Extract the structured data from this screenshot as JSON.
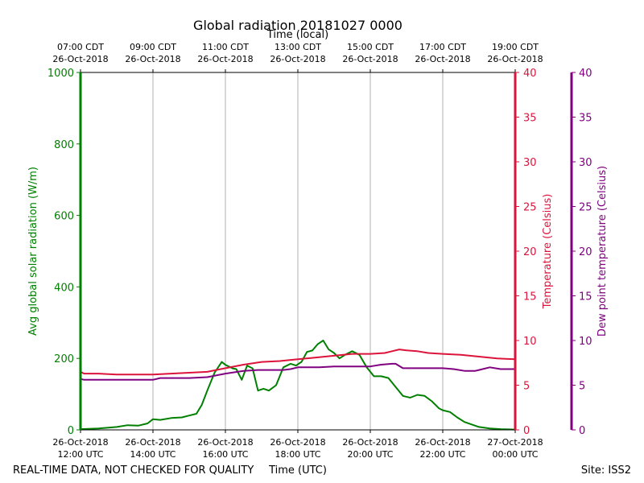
{
  "chart_data": {
    "type": "line",
    "title": "Global radiation 20181027 0000",
    "top_axis_label": "Time (local)",
    "xlabel": "Time (UTC)",
    "footer_left": "REAL-TIME DATA, NOT CHECKED FOR QUALITY",
    "footer_right": "Site: ISS2",
    "x_range_utc_hours": [
      12,
      24
    ],
    "x_ticks": [
      {
        "utc": 12,
        "bottom": [
          "26-Oct-2018",
          "12:00 UTC"
        ],
        "top": [
          "07:00 CDT",
          "26-Oct-2018"
        ]
      },
      {
        "utc": 14,
        "bottom": [
          "26-Oct-2018",
          "14:00 UTC"
        ],
        "top": [
          "09:00 CDT",
          "26-Oct-2018"
        ]
      },
      {
        "utc": 16,
        "bottom": [
          "26-Oct-2018",
          "16:00 UTC"
        ],
        "top": [
          "11:00 CDT",
          "26-Oct-2018"
        ]
      },
      {
        "utc": 18,
        "bottom": [
          "26-Oct-2018",
          "18:00 UTC"
        ],
        "top": [
          "13:00 CDT",
          "26-Oct-2018"
        ]
      },
      {
        "utc": 20,
        "bottom": [
          "26-Oct-2018",
          "20:00 UTC"
        ],
        "top": [
          "15:00 CDT",
          "26-Oct-2018"
        ]
      },
      {
        "utc": 22,
        "bottom": [
          "26-Oct-2018",
          "22:00 UTC"
        ],
        "top": [
          "17:00 CDT",
          "26-Oct-2018"
        ]
      },
      {
        "utc": 24,
        "bottom": [
          "27-Oct-2018",
          "00:00 UTC"
        ],
        "top": [
          "19:00 CDT",
          "26-Oct-2018"
        ]
      }
    ],
    "grid": "vertical",
    "axes": {
      "radiation": {
        "label": "Avg global solar radiation (W/m)",
        "ylim": [
          0,
          1000
        ],
        "ticks": [
          0,
          200,
          400,
          600,
          800,
          1000
        ],
        "color": "#008000",
        "side": "left"
      },
      "temperature": {
        "label": "Temperature (Celsius)",
        "ylim": [
          0,
          40
        ],
        "ticks": [
          0,
          5,
          10,
          15,
          20,
          25,
          30,
          35,
          40
        ],
        "color": "#dc143c",
        "side": "right"
      },
      "dewpoint": {
        "label": "Dew point temperature (Celsius)",
        "ylim": [
          0,
          40
        ],
        "ticks": [
          0,
          5,
          10,
          15,
          20,
          25,
          30,
          35,
          40
        ],
        "color": "#800080",
        "side": "right-outer"
      }
    },
    "series": [
      {
        "axis": "radiation",
        "color": "#008000",
        "x": [
          12.0,
          12.5,
          13.0,
          13.3,
          13.6,
          13.85,
          14.0,
          14.2,
          14.5,
          14.8,
          15.0,
          15.2,
          15.35,
          15.5,
          15.7,
          15.9,
          16.0,
          16.2,
          16.3,
          16.45,
          16.6,
          16.75,
          16.9,
          17.05,
          17.2,
          17.4,
          17.6,
          17.8,
          17.95,
          18.1,
          18.25,
          18.4,
          18.55,
          18.7,
          18.85,
          19.0,
          19.15,
          19.3,
          19.5,
          19.7,
          19.9,
          20.1,
          20.3,
          20.5,
          20.7,
          20.9,
          21.1,
          21.3,
          21.5,
          21.7,
          21.9,
          22.0,
          22.2,
          22.4,
          22.6,
          22.8,
          23.0,
          23.3,
          23.6,
          24.0
        ],
        "values": [
          2,
          4,
          8,
          13,
          12,
          18,
          30,
          28,
          33,
          35,
          40,
          45,
          70,
          110,
          160,
          190,
          182,
          172,
          170,
          140,
          180,
          172,
          110,
          115,
          110,
          125,
          175,
          185,
          180,
          190,
          218,
          222,
          240,
          250,
          225,
          215,
          200,
          210,
          220,
          210,
          175,
          150,
          150,
          145,
          120,
          95,
          90,
          98,
          95,
          80,
          60,
          55,
          50,
          35,
          22,
          15,
          8,
          4,
          2,
          1
        ]
      },
      {
        "axis": "temperature",
        "color": "#dc143c",
        "x": [
          12.0,
          12.1,
          12.5,
          13.0,
          13.5,
          14.0,
          14.5,
          15.0,
          15.5,
          16.0,
          16.5,
          17.0,
          17.5,
          18.0,
          18.5,
          19.0,
          19.5,
          20.0,
          20.4,
          20.6,
          20.8,
          21.0,
          21.3,
          21.6,
          22.0,
          22.5,
          23.0,
          23.5,
          24.0
        ],
        "values": [
          6.5,
          6.3,
          6.3,
          6.2,
          6.2,
          6.2,
          6.3,
          6.4,
          6.5,
          6.9,
          7.3,
          7.6,
          7.7,
          7.9,
          8.1,
          8.3,
          8.5,
          8.5,
          8.6,
          8.8,
          9.0,
          8.9,
          8.8,
          8.6,
          8.5,
          8.4,
          8.2,
          8.0,
          7.9
        ]
      },
      {
        "axis": "dewpoint",
        "color": "#800080",
        "x": [
          12.0,
          12.1,
          12.5,
          13.0,
          13.5,
          14.0,
          14.2,
          14.5,
          15.0,
          15.5,
          16.0,
          16.5,
          16.9,
          17.3,
          17.6,
          17.8,
          18.0,
          18.3,
          18.6,
          19.0,
          19.5,
          20.0,
          20.3,
          20.6,
          20.7,
          20.9,
          21.2,
          21.5,
          22.0,
          22.3,
          22.6,
          22.9,
          23.0,
          23.3,
          23.6,
          24.0
        ],
        "values": [
          5.7,
          5.6,
          5.6,
          5.6,
          5.6,
          5.6,
          5.8,
          5.8,
          5.8,
          5.9,
          6.3,
          6.6,
          6.7,
          6.7,
          6.7,
          6.8,
          7.0,
          7.0,
          7.0,
          7.1,
          7.1,
          7.1,
          7.3,
          7.4,
          7.4,
          6.9,
          6.9,
          6.9,
          6.9,
          6.8,
          6.6,
          6.6,
          6.7,
          7.0,
          6.8,
          6.8
        ]
      }
    ]
  }
}
